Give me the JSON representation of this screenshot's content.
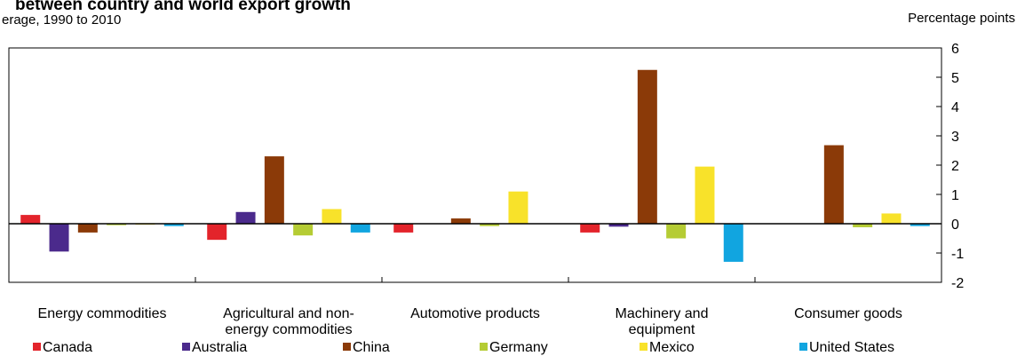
{
  "chart_data": {
    "type": "bar",
    "title": "between country and world export growth",
    "subtitle": "erage, 1990 to 2010",
    "unit_label": "Percentage points",
    "categories": [
      [
        "Energy commodities"
      ],
      [
        "Agricultural and non-",
        "energy commodities"
      ],
      [
        "Automotive products"
      ],
      [
        "Machinery and",
        "equipment"
      ],
      [
        "Consumer goods"
      ]
    ],
    "ylim": [
      -2,
      6
    ],
    "yticks": [
      "6",
      "5",
      "4",
      "3",
      "2",
      "1",
      "0",
      "-1",
      "-2"
    ],
    "legend_position": "bottom",
    "series": [
      {
        "name": "Canada",
        "color": "#e3242b",
        "values": [
          0.3,
          -0.55,
          -0.3,
          -0.3,
          0.0
        ]
      },
      {
        "name": "Australia",
        "color": "#4b2a8c",
        "values": [
          -0.95,
          0.4,
          0.0,
          -0.1,
          0.0
        ]
      },
      {
        "name": "China",
        "color": "#8b3a08",
        "values": [
          -0.3,
          2.3,
          0.18,
          5.25,
          2.68
        ]
      },
      {
        "name": "Germany",
        "color": "#b5cc34",
        "values": [
          -0.05,
          -0.4,
          -0.08,
          -0.5,
          -0.12
        ]
      },
      {
        "name": "Mexico",
        "color": "#f8e22a",
        "values": [
          -0.03,
          0.5,
          1.1,
          1.95,
          0.35
        ]
      },
      {
        "name": "United States",
        "color": "#11a5e0",
        "values": [
          -0.08,
          -0.3,
          0.0,
          -1.3,
          -0.08
        ]
      }
    ]
  }
}
